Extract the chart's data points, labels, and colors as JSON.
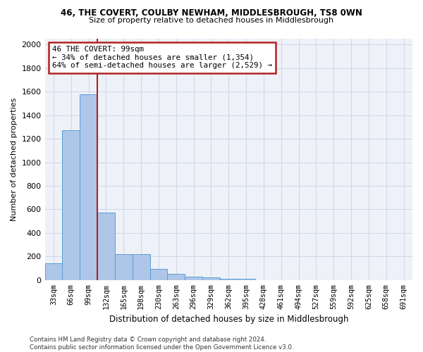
{
  "title_line1": "46, THE COVERT, COULBY NEWHAM, MIDDLESBROUGH, TS8 0WN",
  "title_line2": "Size of property relative to detached houses in Middlesbrough",
  "xlabel": "Distribution of detached houses by size in Middlesbrough",
  "ylabel": "Number of detached properties",
  "footer_line1": "Contains HM Land Registry data © Crown copyright and database right 2024.",
  "footer_line2": "Contains public sector information licensed under the Open Government Licence v3.0.",
  "bar_labels": [
    "33sqm",
    "66sqm",
    "99sqm",
    "132sqm",
    "165sqm",
    "198sqm",
    "230sqm",
    "263sqm",
    "296sqm",
    "329sqm",
    "362sqm",
    "395sqm",
    "428sqm",
    "461sqm",
    "494sqm",
    "527sqm",
    "559sqm",
    "592sqm",
    "625sqm",
    "658sqm",
    "691sqm"
  ],
  "bar_values": [
    140,
    1270,
    1580,
    570,
    220,
    220,
    95,
    50,
    30,
    20,
    10,
    10,
    0,
    0,
    0,
    0,
    0,
    0,
    0,
    0,
    0
  ],
  "bar_color": "#aec6e8",
  "bar_edge_color": "#5a9fd4",
  "highlight_bar_index": 2,
  "highlight_line_color": "#b22222",
  "annotation_text": "46 THE COVERT: 99sqm\n← 34% of detached houses are smaller (1,354)\n64% of semi-detached houses are larger (2,529) →",
  "annotation_box_color": "#b22222",
  "ylim": [
    0,
    2050
  ],
  "yticks": [
    0,
    200,
    400,
    600,
    800,
    1000,
    1200,
    1400,
    1600,
    1800,
    2000
  ],
  "grid_color": "#d0d8e8",
  "background_color": "#eef2f8"
}
